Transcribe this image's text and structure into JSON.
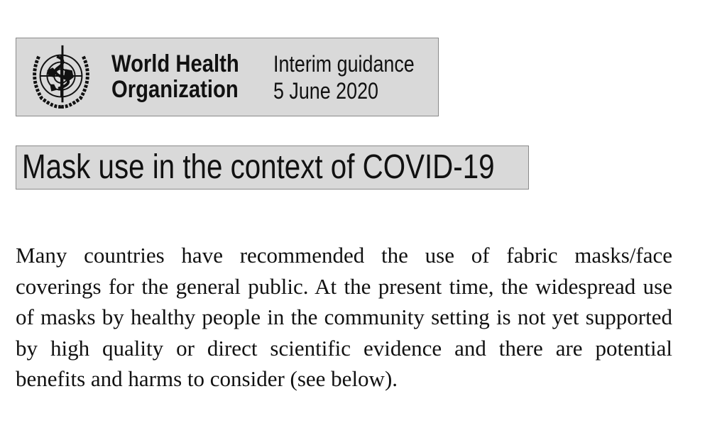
{
  "header": {
    "organization_line1": "World Health",
    "organization_line2": "Organization",
    "document_type": "Interim guidance",
    "date": "5 June 2020",
    "logo_icon": "who-emblem-icon"
  },
  "title": "Mask use in the context of COVID-19",
  "body": "Many countries have recommended the use of fabric masks/face coverings for the general public. At the present time, the widespread use of masks by healthy people in the community setting is not yet supported by high quality or direct scientific evidence and there are potential benefits and harms to consider (see below).",
  "colors": {
    "box_background": "#d9d9d9",
    "text": "#111111"
  }
}
